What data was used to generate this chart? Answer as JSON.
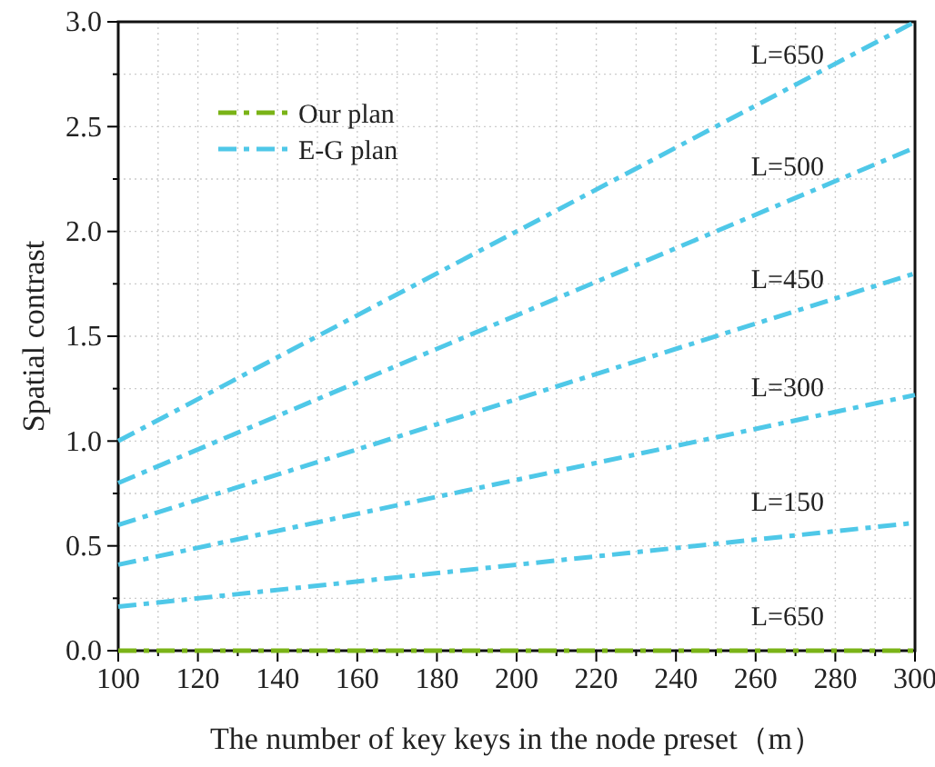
{
  "chart_data": {
    "type": "line",
    "xlabel": "The number of key keys in the node preset（m）",
    "ylabel": "Spatial contrast",
    "x": [
      100,
      300
    ],
    "series": [
      {
        "name": "Our plan",
        "color": "#7ab317",
        "values": [
          0,
          0
        ]
      },
      {
        "name": "E-G plan",
        "color": "#4fc8e8",
        "values": [
          1.0,
          3.0
        ]
      },
      {
        "color": "#4fc8e8",
        "values": [
          0.8,
          2.4
        ]
      },
      {
        "color": "#4fc8e8",
        "values": [
          0.6,
          1.8
        ]
      },
      {
        "color": "#4fc8e8",
        "values": [
          0.41,
          1.22
        ]
      },
      {
        "color": "#4fc8e8",
        "values": [
          0.21,
          0.61
        ]
      }
    ],
    "xlim": [
      100,
      300
    ],
    "ylim": [
      0,
      3.0
    ],
    "xticks": [
      100,
      {
        "value": 110,
        "label": null
      },
      120,
      {
        "value": 130,
        "label": null
      },
      140,
      {
        "value": 150,
        "label": null
      },
      160,
      {
        "value": 170,
        "label": null
      },
      180,
      {
        "value": 190,
        "label": null
      },
      200,
      {
        "value": 210,
        "label": null
      },
      220,
      {
        "value": 230,
        "label": null
      },
      240,
      {
        "value": 250,
        "label": null
      },
      260,
      {
        "value": 270,
        "label": null
      },
      280,
      {
        "value": 290,
        "label": null
      },
      300
    ],
    "yticks": [
      {
        "value": 0,
        "label": "0.0"
      },
      {
        "value": 0.25,
        "label": null
      },
      0.5,
      {
        "value": 0.75,
        "label": null
      },
      {
        "value": 1,
        "label": "1.0"
      },
      {
        "value": 1.25,
        "label": null
      },
      1.5,
      {
        "value": 1.75,
        "label": null
      },
      {
        "value": 2,
        "label": "2.0"
      },
      {
        "value": 2.25,
        "label": null
      },
      2.5,
      {
        "value": 2.75,
        "label": null
      },
      {
        "value": 3,
        "label": "3.0"
      }
    ],
    "annotations": [
      "L=650",
      "L=500",
      "L=450",
      "L=300",
      "L=150",
      "L=650"
    ],
    "grid": true,
    "legend": "top left",
    "line_style": "dashed"
  }
}
